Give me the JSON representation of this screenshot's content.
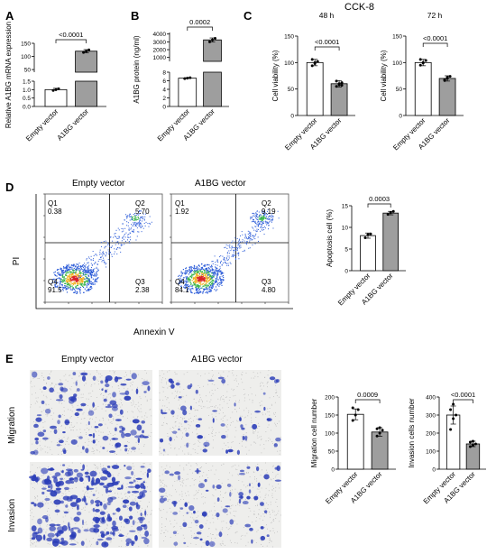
{
  "panels": {
    "A": "A",
    "B": "B",
    "C": "C",
    "D": "D",
    "E": "E"
  },
  "cck_title": "CCK-8",
  "flow": {
    "titles": [
      "Empty vector",
      "A1BG vector"
    ],
    "ylabel": "PI",
    "xlabel": "Annexin V",
    "quadrant_names": [
      "Q1",
      "Q2",
      "Q3",
      "Q4"
    ],
    "empty": {
      "Q1": "0.38",
      "Q2": "5.70",
      "Q3": "2.38",
      "Q4": "91.5"
    },
    "a1bg": {
      "Q1": "1.92",
      "Q2": "9.19",
      "Q3": "4.80",
      "Q4": "84.1"
    }
  },
  "images": {
    "col_titles": [
      "Empty vector",
      "A1BG vector"
    ],
    "row_labels": [
      "Migration",
      "Invasion"
    ]
  },
  "palette": {
    "empty_bar": "#ffffff",
    "a1bg_bar": "#9e9e9e",
    "stain": "#2b3db8"
  },
  "chart_data": [
    {
      "id": "A",
      "type": "bar",
      "categories": [
        "Empty vector",
        "A1BG vector"
      ],
      "ylabel": "Relative A1BG mRNA expression",
      "broken_axis": true,
      "lower_ticks": [
        "0.0",
        "0.5",
        "1.0",
        "1.5"
      ],
      "upper_ticks": [
        "50",
        "100",
        "150"
      ],
      "values": [
        1.0,
        120
      ],
      "errors": [
        0.08,
        6
      ],
      "points": [
        [
          0.95,
          1.0,
          1.05
        ],
        [
          115,
          120,
          125
        ]
      ],
      "significance": "<0.0001"
    },
    {
      "id": "B",
      "type": "bar",
      "categories": [
        "Empty vector",
        "A1BG vector"
      ],
      "ylabel": "A1BG protein (ng/ml)",
      "broken_axis": true,
      "lower_ticks": [
        "0",
        "2",
        "4",
        "6",
        "8"
      ],
      "upper_ticks": [
        "1000",
        "2000",
        "3000",
        "4000"
      ],
      "values": [
        6.6,
        3250
      ],
      "errors": [
        0.1,
        250
      ],
      "points": [
        [
          6.5,
          6.6,
          6.7
        ],
        [
          3000,
          3250,
          3450
        ]
      ],
      "significance": "0.0002"
    },
    {
      "id": "C48",
      "type": "bar",
      "title": "48 h",
      "categories": [
        "Empty vector",
        "A1BG vector"
      ],
      "ylabel": "Cell viability (%)",
      "yticks": [
        "0",
        "50",
        "100",
        "150"
      ],
      "ylim": [
        0,
        150
      ],
      "values": [
        100,
        60
      ],
      "errors": [
        6,
        6
      ],
      "points": [
        [
          94,
          98,
          102,
          106,
          100
        ],
        [
          55,
          58,
          62,
          65,
          60,
          57
        ]
      ],
      "significance": "<0.0001"
    },
    {
      "id": "C72",
      "type": "bar",
      "title": "72 h",
      "categories": [
        "Empty vector",
        "A1BG vector"
      ],
      "ylabel": "Cell viability (%)",
      "yticks": [
        "0",
        "50",
        "100",
        "150"
      ],
      "ylim": [
        0,
        150
      ],
      "values": [
        100,
        70
      ],
      "errors": [
        6,
        5
      ],
      "points": [
        [
          95,
          99,
          104,
          106,
          100
        ],
        [
          66,
          70,
          74,
          68,
          72
        ]
      ],
      "significance": "<0.0001"
    },
    {
      "id": "D",
      "type": "bar",
      "categories": [
        "Empty vector",
        "A1BG vector"
      ],
      "ylabel": "Apoptosis cell  (%)",
      "yticks": [
        "0",
        "5",
        "10",
        "15"
      ],
      "ylim": [
        0,
        15
      ],
      "values": [
        8.1,
        13.3
      ],
      "errors": [
        0.6,
        0.4
      ],
      "points": [
        [
          7.6,
          8.3,
          8.5
        ],
        [
          13.0,
          13.4,
          13.7
        ]
      ],
      "significance": "0.0003"
    },
    {
      "id": "E-mig",
      "type": "bar",
      "categories": [
        "Empty vector",
        "A1BG vector"
      ],
      "ylabel": "Migration cell number",
      "yticks": [
        "0",
        "50",
        "100",
        "150",
        "200"
      ],
      "ylim": [
        0,
        200
      ],
      "values": [
        152,
        103
      ],
      "errors": [
        15,
        12
      ],
      "points": [
        [
          135,
          150,
          165,
          170
        ],
        [
          92,
          100,
          108,
          112,
          115
        ]
      ],
      "significance": "0.0009"
    },
    {
      "id": "E-inv",
      "type": "bar",
      "categories": [
        "Empty vector",
        "A1BG vector"
      ],
      "ylabel": "Invasion cells number",
      "yticks": [
        "0",
        "100",
        "200",
        "300",
        "400"
      ],
      "ylim": [
        0,
        400
      ],
      "values": [
        300,
        140
      ],
      "errors": [
        50,
        15
      ],
      "points": [
        [
          220,
          280,
          300,
          330,
          360
        ],
        [
          125,
          132,
          140,
          150,
          155
        ]
      ],
      "significance": "<0.0001"
    }
  ]
}
